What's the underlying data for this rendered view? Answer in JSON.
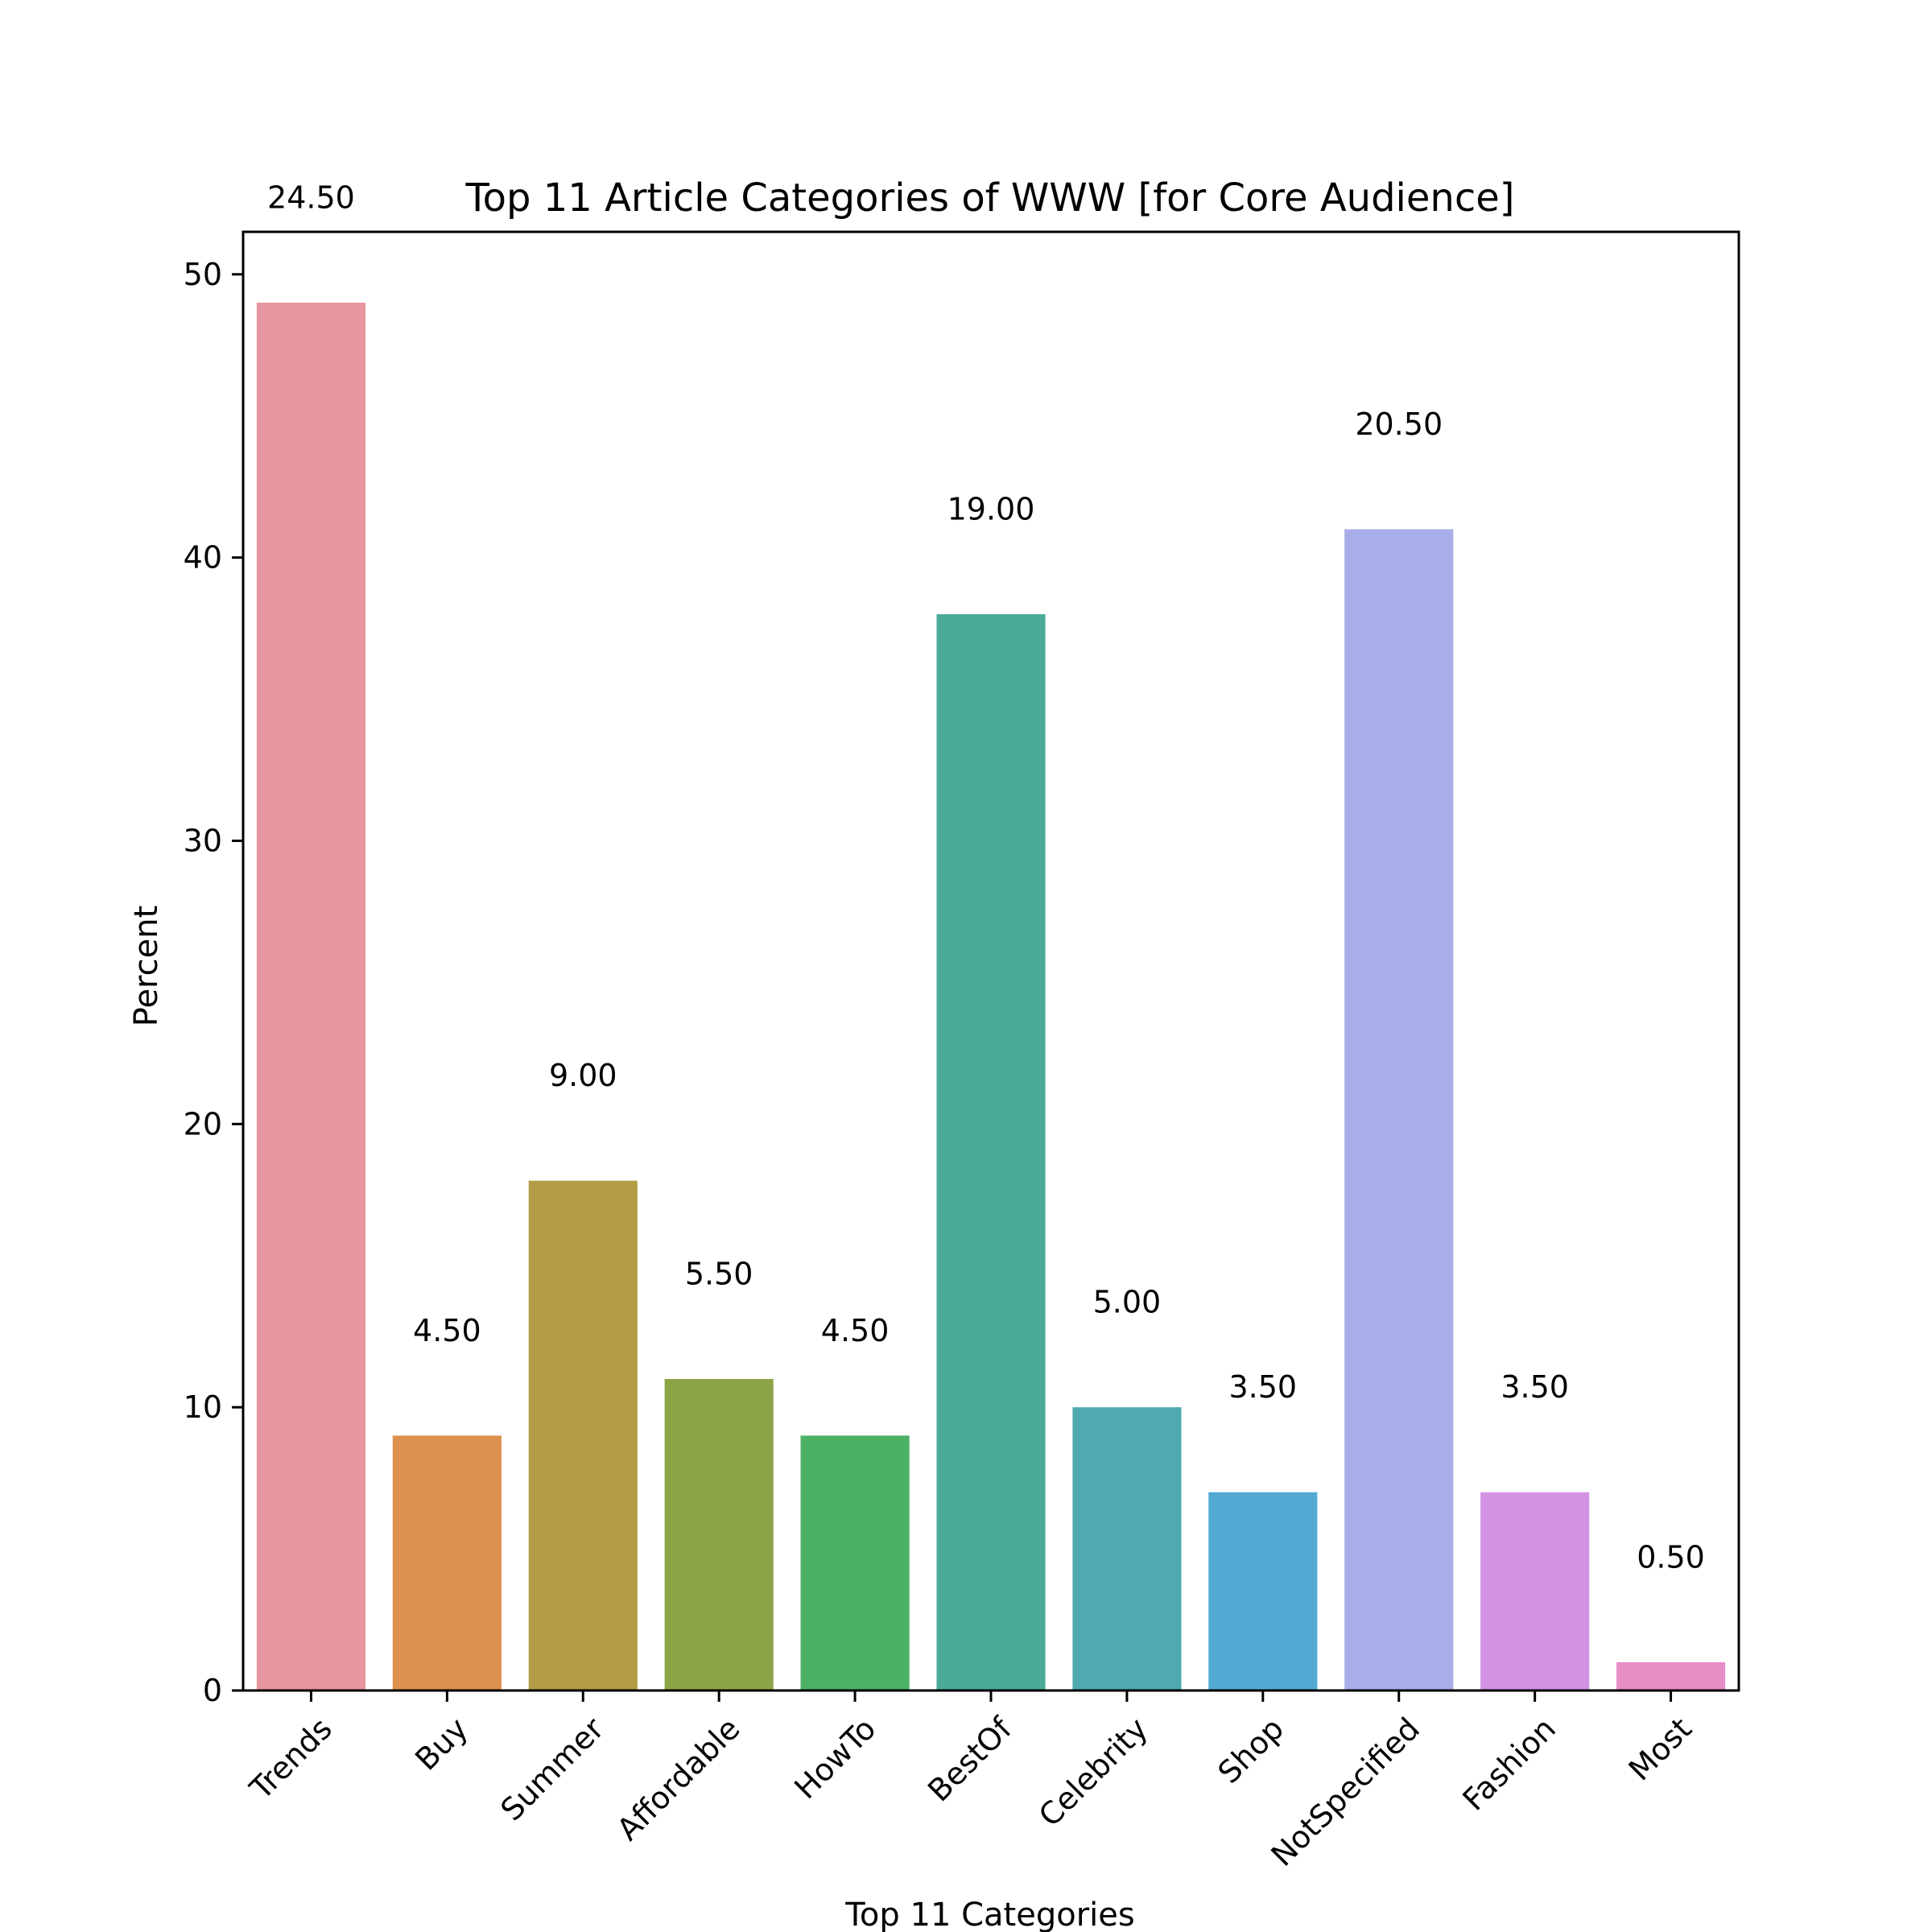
{
  "chart_data": {
    "type": "bar",
    "title": "Top 11 Article Categories of WWW [for Core Audience]",
    "xlabel": "Top 11 Categories",
    "ylabel": "Percent",
    "ylim": [
      0,
      51.5
    ],
    "yticks": [
      0,
      10,
      20,
      30,
      40,
      50
    ],
    "grid": false,
    "legend": "none",
    "categories": [
      "Trends",
      "Buy",
      "Summer",
      "Affordable",
      "HowTo",
      "BestOf",
      "Celebrity",
      "Shop",
      "NotSpecified",
      "Fashion",
      "Most"
    ],
    "values": [
      49,
      9,
      18,
      11,
      9,
      38,
      10,
      7,
      41,
      7,
      1
    ],
    "data_labels": [
      "24.50",
      "4.50",
      "9.00",
      "5.50",
      "4.50",
      "19.00",
      "5.00",
      "3.50",
      "20.50",
      "3.50",
      "0.50"
    ],
    "colors": [
      "#e8969f",
      "#dc914e",
      "#b29c45",
      "#8da446",
      "#4cb065",
      "#4aaa98",
      "#4ea9b0",
      "#52aad2",
      "#a9aee8",
      "#d392e2",
      "#e88ec7"
    ]
  }
}
